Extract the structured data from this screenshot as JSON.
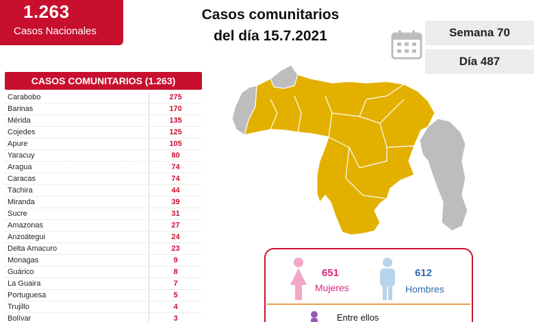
{
  "badge": {
    "total": "1.263",
    "label": "Casos Nacionales"
  },
  "title": {
    "line1": "Casos comunitarios",
    "line2": "del día 15.7.2021"
  },
  "info": {
    "week": "Semana 70",
    "day": "Día 487"
  },
  "table": {
    "header": "CASOS COMUNITARIOS (1.263)",
    "rows": [
      {
        "name": "Carabobo",
        "value": "275"
      },
      {
        "name": "Barinas",
        "value": "170"
      },
      {
        "name": "Mérida",
        "value": "135"
      },
      {
        "name": "Cojedes",
        "value": "125"
      },
      {
        "name": "Apure",
        "value": "105"
      },
      {
        "name": "Yaracuy",
        "value": "80"
      },
      {
        "name": "Aragua",
        "value": "74"
      },
      {
        "name": "Caracas",
        "value": "74"
      },
      {
        "name": "Táchira",
        "value": "44"
      },
      {
        "name": "Miranda",
        "value": "39"
      },
      {
        "name": "Sucre",
        "value": "31"
      },
      {
        "name": "Amazonas",
        "value": "27"
      },
      {
        "name": "Anzoátegui",
        "value": "24"
      },
      {
        "name": "Delta Amacuro",
        "value": "23"
      },
      {
        "name": "Monagas",
        "value": "9"
      },
      {
        "name": "Guárico",
        "value": "8"
      },
      {
        "name": "La Guaira",
        "value": "7"
      },
      {
        "name": "Portuguesa",
        "value": "5"
      },
      {
        "name": "Trujillo",
        "value": "4"
      },
      {
        "name": "Bolívar",
        "value": "3"
      }
    ]
  },
  "gender": {
    "female_count": "651",
    "female_label": "Mujeres",
    "male_count": "612",
    "male_label": "Hombres",
    "between_label": "Entre ellos"
  },
  "colors": {
    "brand_red": "#c8102e",
    "map_affected": "#e3b000",
    "map_unaffected": "#bdbdbd",
    "female": "#d6267a",
    "male": "#2f6bb0"
  },
  "icons": [
    "calendar-icon",
    "female-icon",
    "male-icon",
    "child-icon"
  ]
}
